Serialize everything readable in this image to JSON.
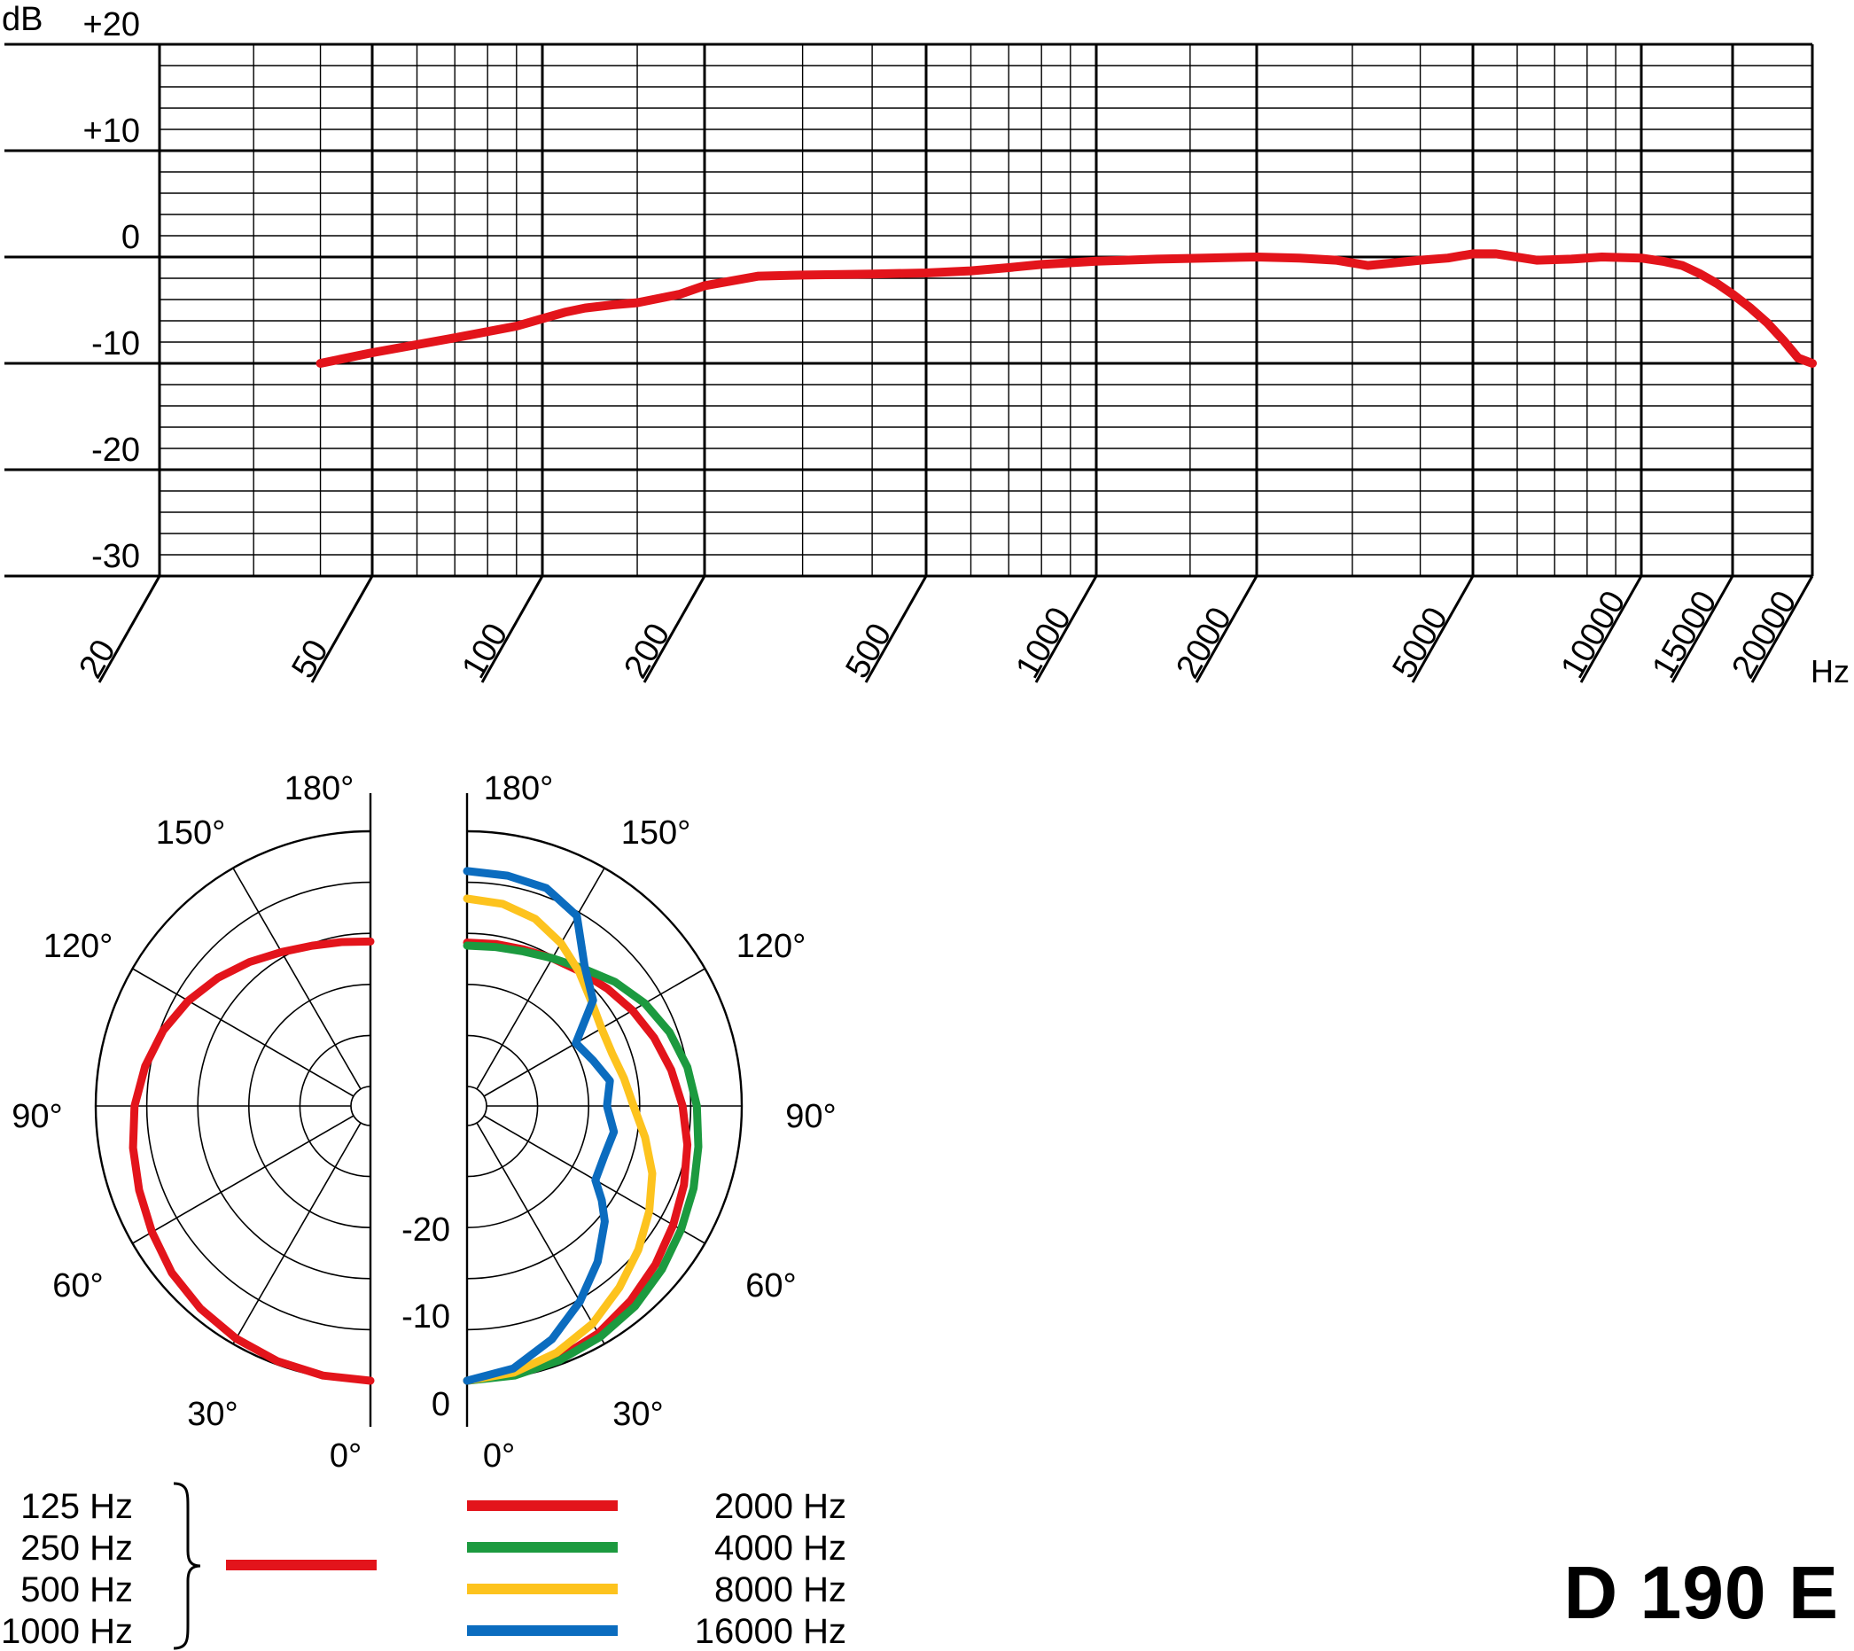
{
  "model": "D 190 E",
  "colors": {
    "red": "#e3141b",
    "green": "#1c9a3f",
    "yellow": "#fdc31e",
    "blue": "#0b6cbf",
    "grid": "#000000"
  },
  "chart_data": [
    {
      "type": "line",
      "title": "",
      "xlabel": "Hz",
      "ylabel": "dB",
      "x_scale": "log",
      "xlim": [
        20,
        20000
      ],
      "ylim": [
        -30,
        20
      ],
      "grid": true,
      "y_tick_labels": [
        "+20",
        "+10",
        "0",
        "-10",
        "-20",
        "-30"
      ],
      "x_tick_labels": [
        "20",
        "50",
        "100",
        "200",
        "500",
        "1000",
        "2000",
        "5000",
        "10000",
        "15000",
        "20000"
      ],
      "series": [
        {
          "color": "red",
          "x": [
            40,
            50,
            70,
            90,
            100,
            110,
            120,
            135,
            150,
            180,
            200,
            250,
            300,
            400,
            500,
            600,
            700,
            800,
            1000,
            1300,
            1600,
            2000,
            2400,
            2800,
            3200,
            4000,
            4500,
            5000,
            5500,
            6500,
            7500,
            8500,
            10000,
            11000,
            12000,
            13000,
            14000,
            15000,
            16000,
            17000,
            18000,
            19000,
            20000
          ],
          "y": [
            -10,
            -9,
            -7.6,
            -6.5,
            -5.8,
            -5.2,
            -4.8,
            -4.5,
            -4.3,
            -3.5,
            -2.7,
            -1.8,
            -1.7,
            -1.6,
            -1.5,
            -1.3,
            -1.0,
            -0.7,
            -0.4,
            -0.2,
            -0.1,
            0.0,
            -0.1,
            -0.3,
            -0.8,
            -0.3,
            -0.1,
            0.3,
            0.3,
            -0.3,
            -0.2,
            0.0,
            -0.1,
            -0.4,
            -0.8,
            -1.6,
            -2.5,
            -3.5,
            -4.8,
            -6.2,
            -7.8,
            -9.5,
            -10.0
          ]
        }
      ]
    },
    {
      "type": "polar",
      "title": "",
      "angle_labels": [
        "180°",
        "150°",
        "120°",
        "90°",
        "60°",
        "30°",
        "0°"
      ],
      "radial_labels": [
        "-20",
        "-10",
        "0"
      ],
      "radial_range_db": [
        -25,
        0
      ],
      "series": [
        {
          "name": "125 Hz, 250 Hz, 500 Hz, 1000 Hz",
          "color": "red",
          "side": "left",
          "angle_deg": [
            0,
            10,
            20,
            30,
            40,
            50,
            60,
            70,
            80,
            90,
            100,
            110,
            120,
            130,
            140,
            150,
            160,
            170,
            180
          ],
          "db": [
            0,
            -0.1,
            -0.3,
            -0.6,
            -1.0,
            -1.5,
            -2.2,
            -2.8,
            -3.3,
            -3.8,
            -4.5,
            -5.3,
            -6.3,
            -7.4,
            -8.5,
            -9.5,
            -10.2,
            -10.6,
            -10.8
          ]
        },
        {
          "name": "2000 Hz",
          "color": "red",
          "side": "right",
          "angle_deg": [
            0,
            10,
            20,
            30,
            40,
            50,
            60,
            70,
            80,
            90,
            100,
            110,
            120,
            130,
            140,
            150,
            160,
            170,
            180
          ],
          "db": [
            0,
            -0.2,
            -0.6,
            -1.2,
            -2.0,
            -2.8,
            -3.6,
            -4.3,
            -5.0,
            -5.8,
            -6.6,
            -7.4,
            -8.2,
            -9.0,
            -9.7,
            -10.2,
            -10.6,
            -10.8,
            -10.9
          ]
        },
        {
          "name": "4000 Hz",
          "color": "green",
          "side": "right",
          "angle_deg": [
            0,
            10,
            20,
            30,
            40,
            50,
            60,
            70,
            80,
            90,
            100,
            110,
            120,
            130,
            140,
            150,
            160,
            170,
            180
          ],
          "db": [
            0,
            -0.1,
            -0.4,
            -0.8,
            -1.3,
            -2.0,
            -2.7,
            -3.3,
            -3.9,
            -4.4,
            -5.0,
            -5.8,
            -6.8,
            -8.0,
            -9.3,
            -10.2,
            -10.8,
            -11.1,
            -11.2
          ]
        },
        {
          "name": "8000 Hz",
          "color": "yellow",
          "side": "right",
          "angle_deg": [
            0,
            10,
            20,
            30,
            40,
            50,
            60,
            70,
            80,
            90,
            100,
            110,
            120,
            130,
            140,
            150,
            160,
            170,
            180
          ],
          "db": [
            0,
            -0.4,
            -1.2,
            -2.3,
            -3.7,
            -5.0,
            -6.3,
            -7.6,
            -9.2,
            -10.6,
            -11.3,
            -11.8,
            -11.7,
            -11.0,
            -9.8,
            -8.5,
            -7.4,
            -6.8,
            -6.6
          ]
        },
        {
          "name": "16000 Hz",
          "color": "blue",
          "side": "right",
          "angle_deg": [
            0,
            10,
            20,
            30,
            40,
            50,
            55,
            60,
            70,
            80,
            90,
            100,
            110,
            120,
            130,
            140,
            150,
            160,
            170,
            180
          ],
          "db": [
            0,
            -0.8,
            -2.6,
            -4.8,
            -7.0,
            -9.3,
            -10.8,
            -12.4,
            -12.6,
            -12.3,
            -13.2,
            -12.7,
            -13.8,
            -14.6,
            -10.8,
            -9.0,
            -5.4,
            -4.2,
            -4.0,
            -3.9
          ]
        }
      ]
    }
  ],
  "legend": {
    "left_entries": [
      "125 Hz",
      "250 Hz",
      "500 Hz",
      "1000 Hz"
    ],
    "left_color": "red",
    "right_entries": [
      {
        "label": "2000 Hz",
        "color": "red"
      },
      {
        "label": "4000 Hz",
        "color": "green"
      },
      {
        "label": "8000 Hz",
        "color": "yellow"
      },
      {
        "label": "16000 Hz",
        "color": "blue"
      }
    ]
  }
}
